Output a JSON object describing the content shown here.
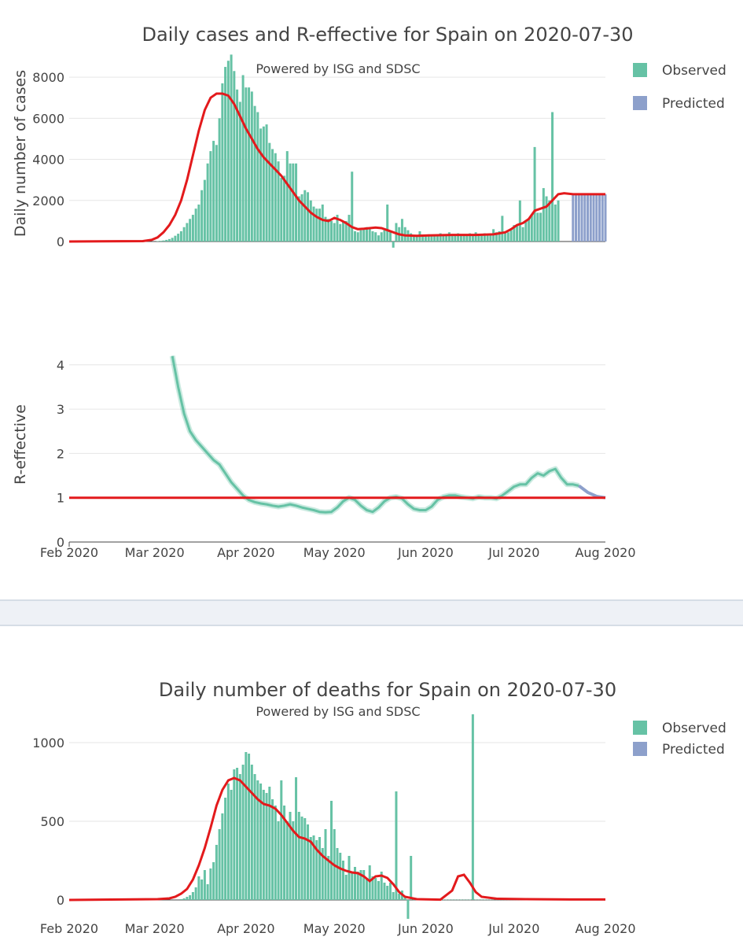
{
  "colors": {
    "observed": "#66c2a5",
    "predicted": "#8da0cb",
    "fit": "#e31a1c",
    "reff": "#66c2a5"
  },
  "chart_data": [
    {
      "id": "cases",
      "type": "bar",
      "title": "Daily cases and R-effective for Spain on 2020-07-30",
      "subtitle": "Powered by ISG and SDSC",
      "xlabel": "",
      "ylabel": "Daily number of cases",
      "xlim": [
        0,
        182
      ],
      "ylim": [
        0,
        9000
      ],
      "yticks": [
        0,
        2000,
        4000,
        6000,
        8000
      ],
      "xticks": [
        {
          "label": "Feb 2020",
          "day": 0
        },
        {
          "label": "Mar 2020",
          "day": 29
        },
        {
          "label": "Apr 2020",
          "day": 60
        },
        {
          "label": "May 2020",
          "day": 90
        },
        {
          "label": "Jun 2020",
          "day": 121
        },
        {
          "label": "Jul 2020",
          "day": 151
        },
        {
          "label": "Aug 2020",
          "day": 182
        }
      ],
      "legend": [
        "Observed",
        "Predicted"
      ],
      "legend_position": "right",
      "bar_start_day": 30,
      "observed_values": [
        20,
        30,
        50,
        80,
        120,
        180,
        280,
        380,
        500,
        700,
        900,
        1100,
        1300,
        1600,
        1800,
        2500,
        3000,
        3800,
        4400,
        4900,
        4700,
        6000,
        7700,
        8500,
        8800,
        9100,
        8300,
        7400,
        6800,
        8100,
        7500,
        7500,
        7300,
        6600,
        6300,
        5500,
        5600,
        5700,
        4800,
        4500,
        4300,
        3900,
        3100,
        3200,
        4400,
        3800,
        3800,
        3800,
        2200,
        2300,
        2500,
        2400,
        2000,
        1700,
        1600,
        1600,
        1800,
        1200,
        1100,
        1000,
        900,
        1300,
        850,
        950,
        1000,
        1300,
        3400,
        500,
        450,
        550,
        600,
        700,
        650,
        500,
        450,
        300,
        450,
        550,
        1800,
        500,
        -300,
        900,
        700,
        1100,
        700,
        550,
        400,
        300,
        300,
        500,
        300,
        300,
        350,
        300,
        250,
        350,
        400,
        350,
        300,
        450,
        350,
        300,
        400,
        350,
        300,
        350,
        400,
        300,
        450,
        350,
        300,
        400,
        350,
        400,
        600,
        450,
        500,
        1250,
        400,
        450,
        550,
        800,
        750,
        2000,
        700,
        1000,
        1100,
        1300,
        4600,
        1400,
        1400,
        2600,
        2200,
        2000,
        6300,
        1800,
        2000
      ],
      "predicted_start_day": 171,
      "predicted_values": [
        2300,
        2300,
        2300,
        2300,
        2300,
        2300,
        2300,
        2300,
        2300,
        2300,
        2300,
        2300
      ],
      "fit_line": [
        [
          0,
          0
        ],
        [
          25,
          20
        ],
        [
          28,
          80
        ],
        [
          30,
          200
        ],
        [
          32,
          450
        ],
        [
          34,
          800
        ],
        [
          36,
          1300
        ],
        [
          38,
          2000
        ],
        [
          40,
          3000
        ],
        [
          42,
          4200
        ],
        [
          44,
          5400
        ],
        [
          46,
          6400
        ],
        [
          48,
          7000
        ],
        [
          50,
          7200
        ],
        [
          52,
          7200
        ],
        [
          54,
          7100
        ],
        [
          56,
          6700
        ],
        [
          58,
          6100
        ],
        [
          60,
          5500
        ],
        [
          62,
          5000
        ],
        [
          64,
          4500
        ],
        [
          66,
          4100
        ],
        [
          68,
          3800
        ],
        [
          70,
          3500
        ],
        [
          72,
          3200
        ],
        [
          74,
          2800
        ],
        [
          76,
          2400
        ],
        [
          78,
          2000
        ],
        [
          80,
          1700
        ],
        [
          82,
          1400
        ],
        [
          84,
          1200
        ],
        [
          86,
          1050
        ],
        [
          88,
          1000
        ],
        [
          90,
          1150
        ],
        [
          92,
          1050
        ],
        [
          94,
          900
        ],
        [
          96,
          700
        ],
        [
          98,
          600
        ],
        [
          100,
          620
        ],
        [
          102,
          650
        ],
        [
          104,
          680
        ],
        [
          106,
          650
        ],
        [
          108,
          550
        ],
        [
          110,
          450
        ],
        [
          112,
          350
        ],
        [
          114,
          300
        ],
        [
          118,
          280
        ],
        [
          122,
          300
        ],
        [
          130,
          320
        ],
        [
          138,
          320
        ],
        [
          144,
          350
        ],
        [
          148,
          450
        ],
        [
          150,
          600
        ],
        [
          152,
          800
        ],
        [
          154,
          900
        ],
        [
          156,
          1100
        ],
        [
          158,
          1500
        ],
        [
          160,
          1600
        ],
        [
          162,
          1700
        ],
        [
          164,
          2000
        ],
        [
          166,
          2300
        ],
        [
          168,
          2350
        ],
        [
          171,
          2300
        ],
        [
          182,
          2300
        ]
      ]
    },
    {
      "id": "reff",
      "type": "line",
      "title": "",
      "xlabel": "",
      "ylabel": "R-effective",
      "xlim": [
        0,
        182
      ],
      "ylim": [
        0,
        4.6
      ],
      "yticks": [
        0,
        1,
        2,
        3,
        4
      ],
      "xticks": [
        {
          "label": "Feb 2020",
          "day": 0
        },
        {
          "label": "Mar 2020",
          "day": 29
        },
        {
          "label": "Apr 2020",
          "day": 60
        },
        {
          "label": "May 2020",
          "day": 90
        },
        {
          "label": "Jun 2020",
          "day": 121
        },
        {
          "label": "Jul 2020",
          "day": 151
        },
        {
          "label": "Aug 2020",
          "day": 182
        }
      ],
      "reference_line": 1,
      "observed_series": [
        [
          35,
          4.2
        ],
        [
          37,
          3.5
        ],
        [
          39,
          2.9
        ],
        [
          41,
          2.5
        ],
        [
          43,
          2.3
        ],
        [
          45,
          2.15
        ],
        [
          47,
          2.0
        ],
        [
          49,
          1.85
        ],
        [
          51,
          1.75
        ],
        [
          53,
          1.55
        ],
        [
          55,
          1.35
        ],
        [
          57,
          1.2
        ],
        [
          59,
          1.05
        ],
        [
          61,
          0.95
        ],
        [
          63,
          0.9
        ],
        [
          65,
          0.87
        ],
        [
          67,
          0.85
        ],
        [
          69,
          0.82
        ],
        [
          71,
          0.8
        ],
        [
          73,
          0.82
        ],
        [
          75,
          0.85
        ],
        [
          77,
          0.82
        ],
        [
          79,
          0.78
        ],
        [
          81,
          0.75
        ],
        [
          83,
          0.72
        ],
        [
          85,
          0.68
        ],
        [
          87,
          0.67
        ],
        [
          89,
          0.68
        ],
        [
          91,
          0.78
        ],
        [
          93,
          0.92
        ],
        [
          95,
          1.0
        ],
        [
          97,
          0.95
        ],
        [
          99,
          0.82
        ],
        [
          101,
          0.72
        ],
        [
          103,
          0.68
        ],
        [
          105,
          0.78
        ],
        [
          107,
          0.92
        ],
        [
          109,
          1.0
        ],
        [
          111,
          1.02
        ],
        [
          113,
          0.98
        ],
        [
          115,
          0.85
        ],
        [
          117,
          0.75
        ],
        [
          119,
          0.72
        ],
        [
          121,
          0.72
        ],
        [
          123,
          0.8
        ],
        [
          125,
          0.95
        ],
        [
          127,
          1.02
        ],
        [
          129,
          1.05
        ],
        [
          131,
          1.05
        ],
        [
          133,
          1.02
        ],
        [
          135,
          1.0
        ],
        [
          137,
          0.98
        ],
        [
          139,
          1.02
        ],
        [
          141,
          1.0
        ],
        [
          143,
          1.0
        ],
        [
          145,
          0.98
        ],
        [
          147,
          1.05
        ],
        [
          149,
          1.15
        ],
        [
          151,
          1.25
        ],
        [
          153,
          1.3
        ],
        [
          155,
          1.3
        ],
        [
          157,
          1.45
        ],
        [
          159,
          1.55
        ],
        [
          161,
          1.5
        ],
        [
          163,
          1.6
        ],
        [
          165,
          1.65
        ],
        [
          167,
          1.45
        ],
        [
          169,
          1.3
        ],
        [
          171,
          1.3
        ],
        [
          173,
          1.27
        ]
      ],
      "predicted_series": [
        [
          173,
          1.27
        ],
        [
          176,
          1.12
        ],
        [
          179,
          1.03
        ],
        [
          182,
          1.0
        ]
      ]
    },
    {
      "id": "deaths",
      "type": "bar",
      "title": "Daily number of deaths for Spain on 2020-07-30",
      "subtitle": "Powered by ISG and SDSC",
      "xlabel": "",
      "ylabel": "",
      "xlim": [
        0,
        182
      ],
      "ylim": [
        0,
        1200
      ],
      "yticks": [
        0,
        500,
        1000
      ],
      "xticks": [
        {
          "label": "Feb 2020",
          "day": 0
        },
        {
          "label": "Mar 2020",
          "day": 29
        },
        {
          "label": "Apr 2020",
          "day": 60
        },
        {
          "label": "May 2020",
          "day": 90
        },
        {
          "label": "Jun 2020",
          "day": 121
        },
        {
          "label": "Jul 2020",
          "day": 151
        },
        {
          "label": "Aug 2020",
          "day": 182
        }
      ],
      "legend": [
        "Observed",
        "Predicted"
      ],
      "legend_position": "right",
      "bar_start_day": 38,
      "observed_values": [
        5,
        10,
        20,
        30,
        50,
        80,
        150,
        130,
        190,
        100,
        200,
        240,
        350,
        450,
        550,
        650,
        740,
        700,
        830,
        840,
        800,
        860,
        940,
        930,
        860,
        800,
        760,
        740,
        700,
        680,
        720,
        640,
        600,
        500,
        760,
        600,
        500,
        560,
        500,
        780,
        560,
        530,
        520,
        480,
        400,
        410,
        380,
        400,
        330,
        450,
        280,
        630,
        450,
        330,
        300,
        250,
        160,
        280,
        170,
        210,
        180,
        190,
        190,
        130,
        220,
        150,
        140,
        120,
        180,
        110,
        90,
        110,
        50,
        690,
        40,
        60,
        20,
        -120,
        280,
        2,
        2,
        2,
        2,
        2,
        2,
        2,
        2,
        2,
        2,
        2,
        2,
        2,
        2,
        2,
        2,
        2,
        2,
        2,
        2,
        1180,
        2,
        2,
        2,
        2,
        2,
        2,
        2,
        2,
        2,
        2,
        2,
        2,
        2,
        2,
        2,
        2,
        2,
        2,
        2,
        2,
        2,
        2,
        2,
        2,
        2,
        2,
        2,
        2,
        2,
        2,
        2,
        2,
        2,
        2
      ],
      "fit_line": [
        [
          0,
          0
        ],
        [
          30,
          5
        ],
        [
          34,
          10
        ],
        [
          36,
          20
        ],
        [
          38,
          40
        ],
        [
          40,
          70
        ],
        [
          42,
          130
        ],
        [
          44,
          220
        ],
        [
          46,
          330
        ],
        [
          48,
          460
        ],
        [
          50,
          600
        ],
        [
          52,
          700
        ],
        [
          54,
          760
        ],
        [
          56,
          775
        ],
        [
          58,
          760
        ],
        [
          60,
          720
        ],
        [
          62,
          680
        ],
        [
          64,
          640
        ],
        [
          66,
          610
        ],
        [
          68,
          600
        ],
        [
          70,
          580
        ],
        [
          72,
          540
        ],
        [
          74,
          490
        ],
        [
          76,
          440
        ],
        [
          78,
          400
        ],
        [
          80,
          390
        ],
        [
          82,
          370
        ],
        [
          84,
          320
        ],
        [
          86,
          280
        ],
        [
          88,
          250
        ],
        [
          90,
          220
        ],
        [
          92,
          200
        ],
        [
          94,
          185
        ],
        [
          96,
          175
        ],
        [
          98,
          170
        ],
        [
          100,
          150
        ],
        [
          102,
          120
        ],
        [
          104,
          150
        ],
        [
          106,
          155
        ],
        [
          108,
          140
        ],
        [
          110,
          100
        ],
        [
          112,
          50
        ],
        [
          114,
          20
        ],
        [
          118,
          5
        ],
        [
          126,
          2
        ],
        [
          130,
          60
        ],
        [
          132,
          150
        ],
        [
          134,
          160
        ],
        [
          136,
          110
        ],
        [
          138,
          50
        ],
        [
          140,
          20
        ],
        [
          145,
          8
        ],
        [
          155,
          5
        ],
        [
          170,
          3
        ],
        [
          182,
          3
        ]
      ]
    }
  ]
}
